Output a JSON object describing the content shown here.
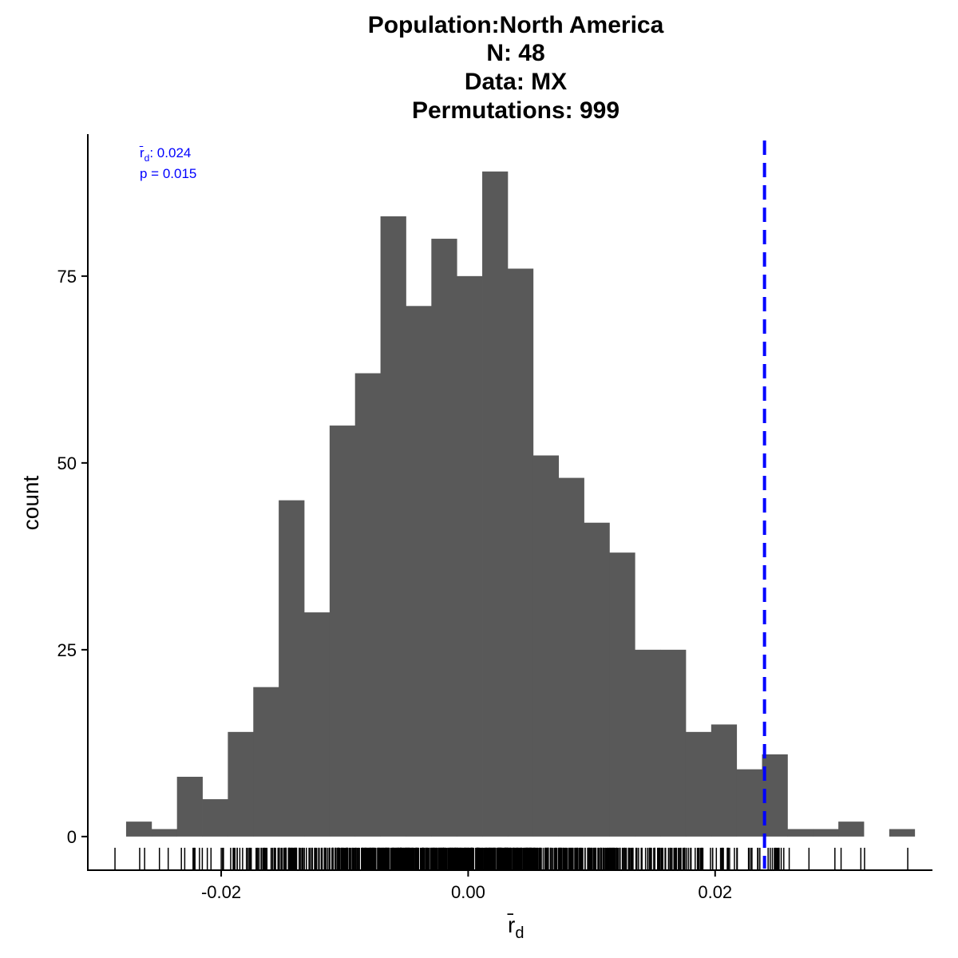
{
  "chart_data": {
    "type": "bar",
    "title_lines": [
      "Population:North America",
      "N: 48",
      "Data: MX",
      "Permutations: 999"
    ],
    "xlabel": "r̄",
    "xlabel_subscript": "d",
    "ylabel": "count",
    "xlim": [
      -0.0308,
      0.0376
    ],
    "ylim": [
      -4.5,
      94
    ],
    "x_ticks": [
      -0.02,
      0.0,
      0.02
    ],
    "x_tick_labels": [
      "-0.02",
      "0.00",
      "0.02"
    ],
    "y_ticks": [
      0,
      25,
      50,
      75
    ],
    "y_tick_labels": [
      "0",
      "25",
      "50",
      "75"
    ],
    "bin_width": 0.00206,
    "bins": [
      {
        "x_left": -0.0277,
        "count": 2
      },
      {
        "x_left": -0.02564,
        "count": 1
      },
      {
        "x_left": -0.02358,
        "count": 8
      },
      {
        "x_left": -0.02152,
        "count": 5
      },
      {
        "x_left": -0.01946,
        "count": 14
      },
      {
        "x_left": -0.0174,
        "count": 20
      },
      {
        "x_left": -0.01534,
        "count": 45
      },
      {
        "x_left": -0.01328,
        "count": 30
      },
      {
        "x_left": -0.01122,
        "count": 55
      },
      {
        "x_left": -0.00916,
        "count": 62
      },
      {
        "x_left": -0.0071,
        "count": 83
      },
      {
        "x_left": -0.00504,
        "count": 71
      },
      {
        "x_left": -0.00298,
        "count": 80
      },
      {
        "x_left": -0.00092,
        "count": 75
      },
      {
        "x_left": 0.00114,
        "count": 89
      },
      {
        "x_left": 0.0032,
        "count": 76
      },
      {
        "x_left": 0.00526,
        "count": 51
      },
      {
        "x_left": 0.00732,
        "count": 48
      },
      {
        "x_left": 0.00938,
        "count": 42
      },
      {
        "x_left": 0.01144,
        "count": 38
      },
      {
        "x_left": 0.0135,
        "count": 25
      },
      {
        "x_left": 0.01556,
        "count": 25
      },
      {
        "x_left": 0.01762,
        "count": 14
      },
      {
        "x_left": 0.01968,
        "count": 15
      },
      {
        "x_left": 0.02174,
        "count": 9
      },
      {
        "x_left": 0.0238,
        "count": 11
      },
      {
        "x_left": 0.02586,
        "count": 1
      },
      {
        "x_left": 0.02792,
        "count": 1
      },
      {
        "x_left": 0.02998,
        "count": 2
      },
      {
        "x_left": 0.03204,
        "count": 0
      },
      {
        "x_left": 0.0341,
        "count": 1
      }
    ],
    "observed_value": 0.024,
    "observed_line_style": "dashed",
    "annotation": {
      "stat_label": "r̄",
      "stat_subscript": "d",
      "stat_value": ": 0.024",
      "p_text": "p = 0.015",
      "position": "top-left"
    },
    "rug": true,
    "rug_isolated_x": [
      -0.0266,
      -0.0262,
      -0.025,
      -0.0286,
      0.0248,
      0.0251,
      0.026,
      0.0276,
      0.0297,
      0.0302,
      0.0318,
      0.0321,
      0.0356
    ],
    "grid": false,
    "colors": {
      "bars": "#595959",
      "observed_line": "#0000ff",
      "annotation": "#0000ff",
      "axis": "#000000",
      "rug": "#000000"
    }
  }
}
